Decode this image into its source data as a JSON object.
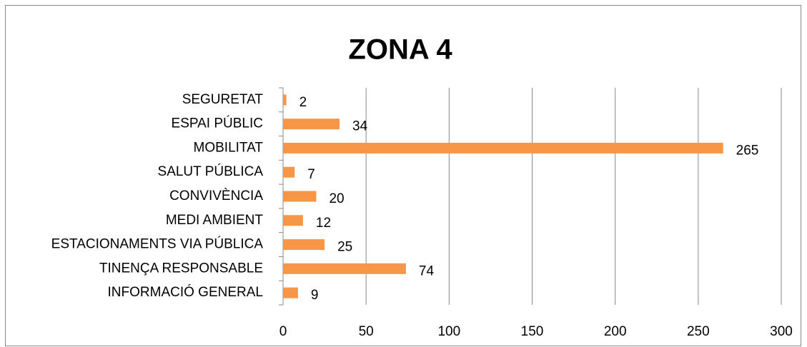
{
  "chart_data": {
    "type": "bar",
    "orientation": "horizontal",
    "title": "ZONA 4",
    "categories": [
      "SEGURETAT",
      "ESPAI PÚBLIC",
      "MOBILITAT",
      "SALUT PÚBLICA",
      "CONVIVÈNCIA",
      "MEDI AMBIENT",
      "ESTACIONAMENTS VIA PÚBLICA",
      "TINENÇA RESPONSABLE",
      "INFORMACIÓ GENERAL"
    ],
    "values": [
      2,
      34,
      265,
      7,
      20,
      12,
      25,
      74,
      9
    ],
    "color": "#f79646",
    "xlim": [
      0,
      300
    ],
    "xticks": [
      0,
      50,
      100,
      150,
      200,
      250,
      300
    ],
    "grid": true
  }
}
